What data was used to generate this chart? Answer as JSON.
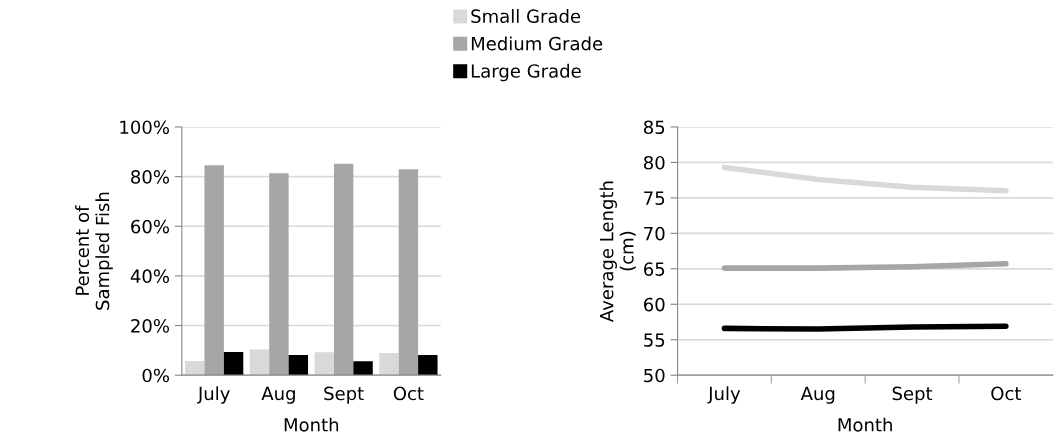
{
  "chart_data": [
    {
      "type": "bar",
      "ylabel": "Percent of\nSampled Fish",
      "xlabel": "Month",
      "categories": [
        "July",
        "Aug",
        "Sept",
        "Oct"
      ],
      "series": [
        {
          "name": "Small Grade",
          "color": "#d9d9d9",
          "values": [
            5.7,
            10.3,
            9.2,
            8.9
          ]
        },
        {
          "name": "Medium Grade",
          "color": "#a6a6a6",
          "values": [
            84.6,
            81.4,
            85.2,
            83.0
          ]
        },
        {
          "name": "Large Grade",
          "color": "#000000",
          "values": [
            9.3,
            8.1,
            5.6,
            8.1
          ]
        }
      ],
      "ylim": [
        0,
        100
      ],
      "yticks": [
        {
          "value": 0,
          "label": "0%"
        },
        {
          "value": 20,
          "label": "20%"
        },
        {
          "value": 40,
          "label": "40%"
        },
        {
          "value": 60,
          "label": "60%"
        },
        {
          "value": 80,
          "label": "80%"
        },
        {
          "value": 100,
          "label": "100%"
        }
      ],
      "grid": "y",
      "legend": "top"
    },
    {
      "type": "line",
      "ylabel": "Average Length\n(cm)",
      "xlabel": "Month",
      "categories": [
        "July",
        "Aug",
        "Sept",
        "Oct"
      ],
      "series": [
        {
          "color": "#d9d9d9",
          "values": [
            79.3,
            77.6,
            76.5,
            76.0
          ]
        },
        {
          "color": "#a6a6a6",
          "values": [
            65.1,
            65.1,
            65.3,
            65.7
          ]
        },
        {
          "color": "#000000",
          "values": [
            56.6,
            56.5,
            56.8,
            56.9
          ]
        }
      ],
      "ylim": [
        50,
        85
      ],
      "yticks": [
        50,
        55,
        60,
        65,
        70,
        75,
        80,
        85
      ],
      "grid": "y",
      "marker": "none",
      "line_style": "solid"
    }
  ]
}
